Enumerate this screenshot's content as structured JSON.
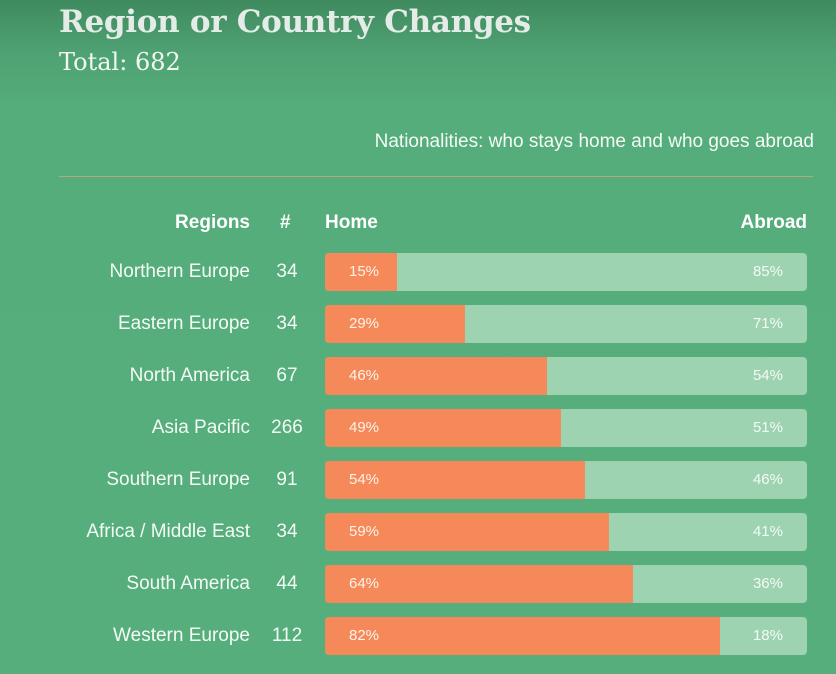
{
  "header": {
    "title": "Region or Country Changes",
    "total": "Total: 682",
    "subtitle": "Nationalities: who stays home and who goes abroad"
  },
  "columns": {
    "regions": "Regions",
    "count": "#",
    "home": "Home",
    "abroad": "Abroad"
  },
  "colors": {
    "background": "#56ae7c",
    "home": "#f5895a",
    "abroad": "#9dd3b0",
    "divider": "#b7a877"
  },
  "rows": [
    {
      "region": "Northern Europe",
      "count": "34",
      "home": 15,
      "abroad": 85,
      "home_label": "15%",
      "abroad_label": "85%"
    },
    {
      "region": "Eastern Europe",
      "count": "34",
      "home": 29,
      "abroad": 71,
      "home_label": "29%",
      "abroad_label": "71%"
    },
    {
      "region": "North America",
      "count": "67",
      "home": 46,
      "abroad": 54,
      "home_label": "46%",
      "abroad_label": "54%"
    },
    {
      "region": "Asia Pacific",
      "count": "266",
      "home": 49,
      "abroad": 51,
      "home_label": "49%",
      "abroad_label": "51%"
    },
    {
      "region": "Southern Europe",
      "count": "91",
      "home": 54,
      "abroad": 46,
      "home_label": "54%",
      "abroad_label": "46%"
    },
    {
      "region": "Africa / Middle East",
      "count": "34",
      "home": 59,
      "abroad": 41,
      "home_label": "59%",
      "abroad_label": "41%"
    },
    {
      "region": "South America",
      "count": "44",
      "home": 64,
      "abroad": 36,
      "home_label": "64%",
      "abroad_label": "36%"
    },
    {
      "region": "Western Europe",
      "count": "112",
      "home": 82,
      "abroad": 18,
      "home_label": "82%",
      "abroad_label": "18%"
    }
  ],
  "chart_data": {
    "type": "bar",
    "stacked": true,
    "orientation": "horizontal",
    "title": "Region or Country Changes",
    "subtitle": "Nationalities: who stays home and who goes abroad",
    "annotation": "Total: 682",
    "categories": [
      "Northern Europe",
      "Eastern Europe",
      "North America",
      "Asia Pacific",
      "Southern Europe",
      "Africa / Middle East",
      "South America",
      "Western Europe"
    ],
    "counts": [
      34,
      34,
      67,
      266,
      91,
      34,
      44,
      112
    ],
    "series": [
      {
        "name": "Home",
        "values": [
          15,
          29,
          46,
          49,
          54,
          59,
          64,
          82
        ],
        "color": "#f5895a"
      },
      {
        "name": "Abroad",
        "values": [
          85,
          71,
          54,
          51,
          46,
          41,
          36,
          18
        ],
        "color": "#9dd3b0"
      }
    ],
    "xlabel": "",
    "ylabel": "Regions",
    "xlim": [
      0,
      100
    ],
    "unit": "%",
    "grid": false,
    "legend": "column headers (Home left, Abroad right)"
  }
}
